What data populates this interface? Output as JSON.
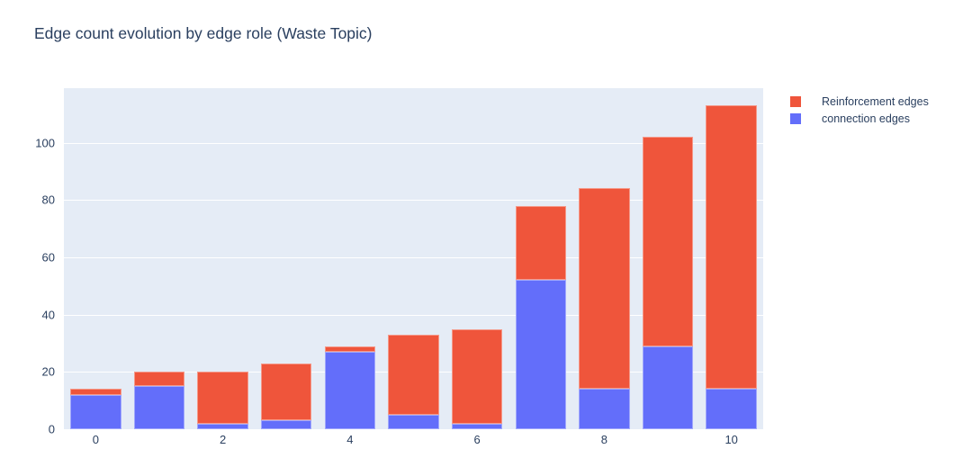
{
  "chart_data": {
    "type": "bar",
    "stacked": true,
    "title": "Edge count evolution by edge role (Waste Topic)",
    "x": [
      0,
      1,
      2,
      3,
      4,
      5,
      6,
      7,
      8,
      9,
      10
    ],
    "series": [
      {
        "name": "Reinforcement edges",
        "color": "#EF553B",
        "values": [
          2,
          5,
          18,
          20,
          2,
          28,
          33,
          26,
          70,
          73,
          99
        ]
      },
      {
        "name": "connection edges",
        "color": "#636EFA",
        "values": [
          12,
          15,
          2,
          3,
          27,
          5,
          2,
          52,
          14,
          29,
          14
        ]
      }
    ],
    "stack_totals": [
      14,
      20,
      20,
      23,
      29,
      33,
      35,
      78,
      84,
      102,
      113
    ],
    "xlabel": "",
    "ylabel": "",
    "ylim": [
      0,
      119
    ],
    "yticks": [
      0,
      20,
      40,
      60,
      80,
      100
    ],
    "xticks": [
      0,
      2,
      4,
      6,
      8,
      10
    ],
    "grid": true,
    "legend_position": "top-right-outside",
    "colors": {
      "paper_bg": "#FFFFFF",
      "plot_bg": "#E5ECF6",
      "grid": "#FFFFFF",
      "text": "#2A3F5F"
    }
  }
}
